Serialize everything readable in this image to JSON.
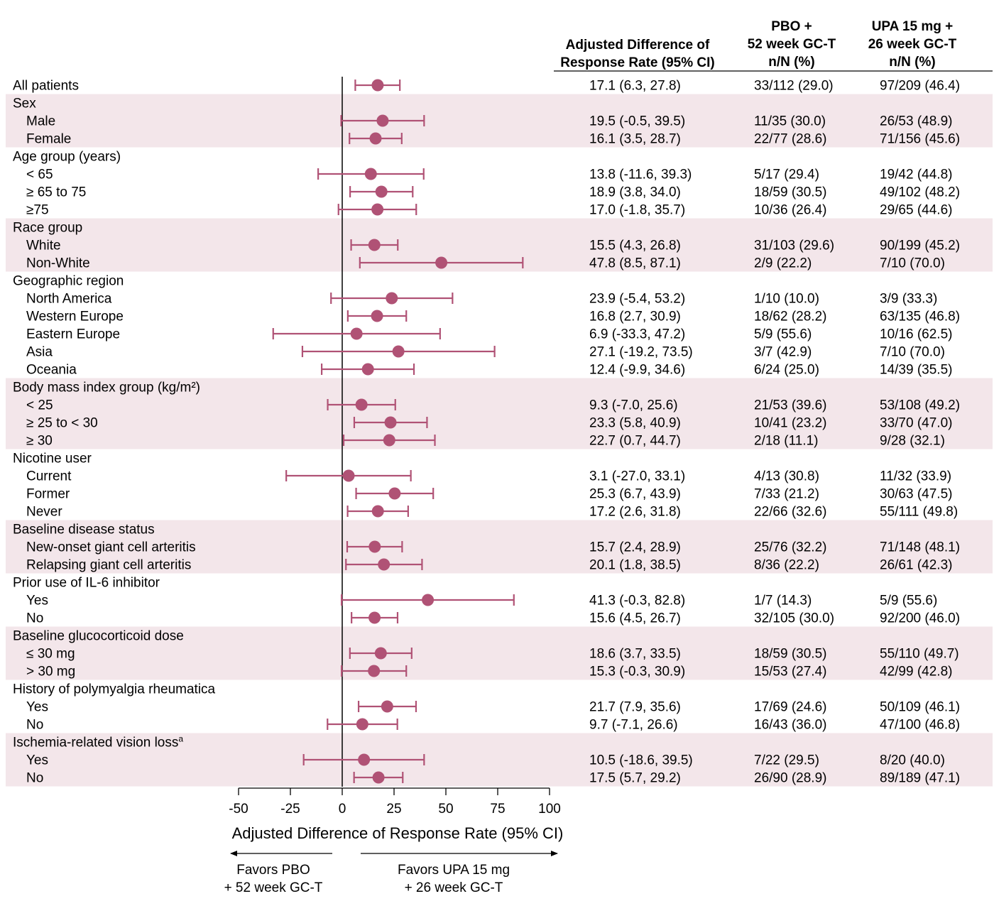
{
  "headers": {
    "col1": [
      "Adjusted Difference of",
      "Response Rate (95% CI)"
    ],
    "col2": [
      "PBO +",
      "52 week GC-T",
      "n/N (%)"
    ],
    "col3": [
      "UPA 15 mg +",
      "26 week GC-T",
      "n/N (%)"
    ]
  },
  "colors": {
    "marker": "#b05275",
    "band": "#f3e6ea"
  },
  "chart_data": {
    "type": "forest",
    "xlabel": "Adjusted Difference of Response Rate (95% CI)",
    "xticks": [
      -50,
      -25,
      0,
      25,
      50,
      75,
      100
    ],
    "xlim": [
      -50,
      100
    ],
    "reference_line": 0,
    "favors_left": [
      "Favors PBO",
      "+ 52 week GC-T"
    ],
    "favors_right": [
      "Favors UPA 15 mg",
      "+ 26 week GC-T"
    ],
    "rows": [
      {
        "label": "All patients",
        "level": 0,
        "est": 17.1,
        "lo": 6.3,
        "hi": 27.8,
        "ci": "17.1 (6.3, 27.8)",
        "pbo": "33/112 (29.0)",
        "upa": "97/209 (46.4)",
        "shade": false
      },
      {
        "label": "Sex",
        "level": 0,
        "shade": true
      },
      {
        "label": "Male",
        "level": 1,
        "est": 19.5,
        "lo": -0.5,
        "hi": 39.5,
        "ci": "19.5 (-0.5, 39.5)",
        "pbo": "11/35 (30.0)",
        "upa": "26/53 (48.9)",
        "shade": true
      },
      {
        "label": "Female",
        "level": 1,
        "est": 16.1,
        "lo": 3.5,
        "hi": 28.7,
        "ci": "16.1 (3.5, 28.7)",
        "pbo": "22/77 (28.6)",
        "upa": "71/156 (45.6)",
        "shade": true
      },
      {
        "label": "Age group (years)",
        "level": 0,
        "shade": false
      },
      {
        "label": "< 65",
        "level": 1,
        "est": 13.8,
        "lo": -11.6,
        "hi": 39.3,
        "ci": "13.8 (-11.6, 39.3)",
        "pbo": "5/17 (29.4)",
        "upa": "19/42 (44.8)",
        "shade": false
      },
      {
        "label": "≥ 65 to 75",
        "level": 1,
        "est": 18.9,
        "lo": 3.8,
        "hi": 34.0,
        "ci": "18.9 (3.8, 34.0)",
        "pbo": "18/59 (30.5)",
        "upa": "49/102 (48.2)",
        "shade": false
      },
      {
        "label": "≥75",
        "level": 1,
        "est": 17.0,
        "lo": -1.8,
        "hi": 35.7,
        "ci": "17.0 (-1.8, 35.7)",
        "pbo": "10/36 (26.4)",
        "upa": "29/65 (44.6)",
        "shade": false
      },
      {
        "label": "Race group",
        "level": 0,
        "shade": true
      },
      {
        "label": "White",
        "level": 1,
        "est": 15.5,
        "lo": 4.3,
        "hi": 26.8,
        "ci": "15.5 (4.3, 26.8)",
        "pbo": "31/103 (29.6)",
        "upa": "90/199 (45.2)",
        "shade": true
      },
      {
        "label": "Non-White",
        "level": 1,
        "est": 47.8,
        "lo": 8.5,
        "hi": 87.1,
        "ci": "47.8 (8.5, 87.1)",
        "pbo": "2/9 (22.2)",
        "upa": "7/10 (70.0)",
        "shade": true
      },
      {
        "label": "Geographic region",
        "level": 0,
        "shade": false
      },
      {
        "label": "North America",
        "level": 1,
        "est": 23.9,
        "lo": -5.4,
        "hi": 53.2,
        "ci": "23.9 (-5.4, 53.2)",
        "pbo": "1/10 (10.0)",
        "upa": "3/9 (33.3)",
        "shade": false
      },
      {
        "label": "Western Europe",
        "level": 1,
        "est": 16.8,
        "lo": 2.7,
        "hi": 30.9,
        "ci": "16.8 (2.7, 30.9)",
        "pbo": "18/62 (28.2)",
        "upa": "63/135 (46.8)",
        "shade": false
      },
      {
        "label": "Eastern Europe",
        "level": 1,
        "est": 6.9,
        "lo": -33.3,
        "hi": 47.2,
        "ci": "6.9 (-33.3, 47.2)",
        "pbo": "5/9 (55.6)",
        "upa": "10/16 (62.5)",
        "shade": false
      },
      {
        "label": "Asia",
        "level": 1,
        "est": 27.1,
        "lo": -19.2,
        "hi": 73.5,
        "ci": "27.1 (-19.2, 73.5)",
        "pbo": "3/7 (42.9)",
        "upa": "7/10 (70.0)",
        "shade": false
      },
      {
        "label": "Oceania",
        "level": 1,
        "est": 12.4,
        "lo": -9.9,
        "hi": 34.6,
        "ci": "12.4 (-9.9, 34.6)",
        "pbo": "6/24 (25.0)",
        "upa": "14/39 (35.5)",
        "shade": false
      },
      {
        "label": "Body mass index group (kg/m²)",
        "level": 0,
        "shade": true
      },
      {
        "label": "< 25",
        "level": 1,
        "est": 9.3,
        "lo": -7.0,
        "hi": 25.6,
        "ci": "9.3 (-7.0, 25.6)",
        "pbo": "21/53 (39.6)",
        "upa": "53/108 (49.2)",
        "shade": true
      },
      {
        "label": "≥ 25 to < 30",
        "level": 1,
        "est": 23.3,
        "lo": 5.8,
        "hi": 40.9,
        "ci": "23.3 (5.8, 40.9)",
        "pbo": "10/41 (23.2)",
        "upa": "33/70 (47.0)",
        "shade": true
      },
      {
        "label": "≥ 30",
        "level": 1,
        "est": 22.7,
        "lo": 0.7,
        "hi": 44.7,
        "ci": "22.7 (0.7, 44.7)",
        "pbo": "2/18 (11.1)",
        "upa": "9/28 (32.1)",
        "shade": true
      },
      {
        "label": "Nicotine user",
        "level": 0,
        "shade": false
      },
      {
        "label": "Current",
        "level": 1,
        "est": 3.1,
        "lo": -27.0,
        "hi": 33.1,
        "ci": "3.1 (-27.0, 33.1)",
        "pbo": "4/13 (30.8)",
        "upa": "11/32 (33.9)",
        "shade": false
      },
      {
        "label": "Former",
        "level": 1,
        "est": 25.3,
        "lo": 6.7,
        "hi": 43.9,
        "ci": "25.3 (6.7, 43.9)",
        "pbo": "7/33 (21.2)",
        "upa": "30/63 (47.5)",
        "shade": false
      },
      {
        "label": "Never",
        "level": 1,
        "est": 17.2,
        "lo": 2.6,
        "hi": 31.8,
        "ci": "17.2 (2.6, 31.8)",
        "pbo": "22/66 (32.6)",
        "upa": "55/111 (49.8)",
        "shade": false
      },
      {
        "label": "Baseline disease status",
        "level": 0,
        "shade": true
      },
      {
        "label": "New-onset giant cell arteritis",
        "level": 1,
        "est": 15.7,
        "lo": 2.4,
        "hi": 28.9,
        "ci": "15.7 (2.4, 28.9)",
        "pbo": "25/76 (32.2)",
        "upa": "71/148 (48.1)",
        "shade": true
      },
      {
        "label": "Relapsing giant cell arteritis",
        "level": 1,
        "est": 20.1,
        "lo": 1.8,
        "hi": 38.5,
        "ci": "20.1 (1.8, 38.5)",
        "pbo": "8/36 (22.2)",
        "upa": "26/61 (42.3)",
        "shade": true
      },
      {
        "label": "Prior use of IL-6 inhibitor",
        "level": 0,
        "shade": false
      },
      {
        "label": "Yes",
        "level": 1,
        "est": 41.3,
        "lo": -0.3,
        "hi": 82.8,
        "ci": "41.3 (-0.3, 82.8)",
        "pbo": "1/7 (14.3)",
        "upa": "5/9 (55.6)",
        "shade": false
      },
      {
        "label": "No",
        "level": 1,
        "est": 15.6,
        "lo": 4.5,
        "hi": 26.7,
        "ci": "15.6 (4.5, 26.7)",
        "pbo": "32/105 (30.0)",
        "upa": "92/200 (46.0)",
        "shade": false
      },
      {
        "label": "Baseline glucocorticoid dose",
        "level": 0,
        "shade": true
      },
      {
        "label": "≤ 30 mg",
        "level": 1,
        "est": 18.6,
        "lo": 3.7,
        "hi": 33.5,
        "ci": "18.6 (3.7, 33.5)",
        "pbo": "18/59 (30.5)",
        "upa": "55/110 (49.7)",
        "shade": true
      },
      {
        "label": "> 30 mg",
        "level": 1,
        "est": 15.3,
        "lo": -0.3,
        "hi": 30.9,
        "ci": "15.3 (-0.3, 30.9)",
        "pbo": "15/53 (27.4)",
        "upa": "42/99 (42.8)",
        "shade": true
      },
      {
        "label": "History of polymyalgia rheumatica",
        "level": 0,
        "shade": false
      },
      {
        "label": "Yes",
        "level": 1,
        "est": 21.7,
        "lo": 7.9,
        "hi": 35.6,
        "ci": "21.7 (7.9, 35.6)",
        "pbo": "17/69 (24.6)",
        "upa": "50/109 (46.1)",
        "shade": false
      },
      {
        "label": "No",
        "level": 1,
        "est": 9.7,
        "lo": -7.1,
        "hi": 26.6,
        "ci": "9.7 (-7.1, 26.6)",
        "pbo": "16/43 (36.0)",
        "upa": "47/100 (46.8)",
        "shade": false
      },
      {
        "label": "Ischemia-related vision loss",
        "sup": "a",
        "level": 0,
        "shade": true
      },
      {
        "label": "Yes",
        "level": 1,
        "est": 10.5,
        "lo": -18.6,
        "hi": 39.5,
        "ci": "10.5 (-18.6, 39.5)",
        "pbo": "7/22 (29.5)",
        "upa": "8/20 (40.0)",
        "shade": true
      },
      {
        "label": "No",
        "level": 1,
        "est": 17.5,
        "lo": 5.7,
        "hi": 29.2,
        "ci": "17.5 (5.7, 29.2)",
        "pbo": "26/90 (28.9)",
        "upa": "89/189 (47.1)",
        "shade": true
      }
    ]
  }
}
